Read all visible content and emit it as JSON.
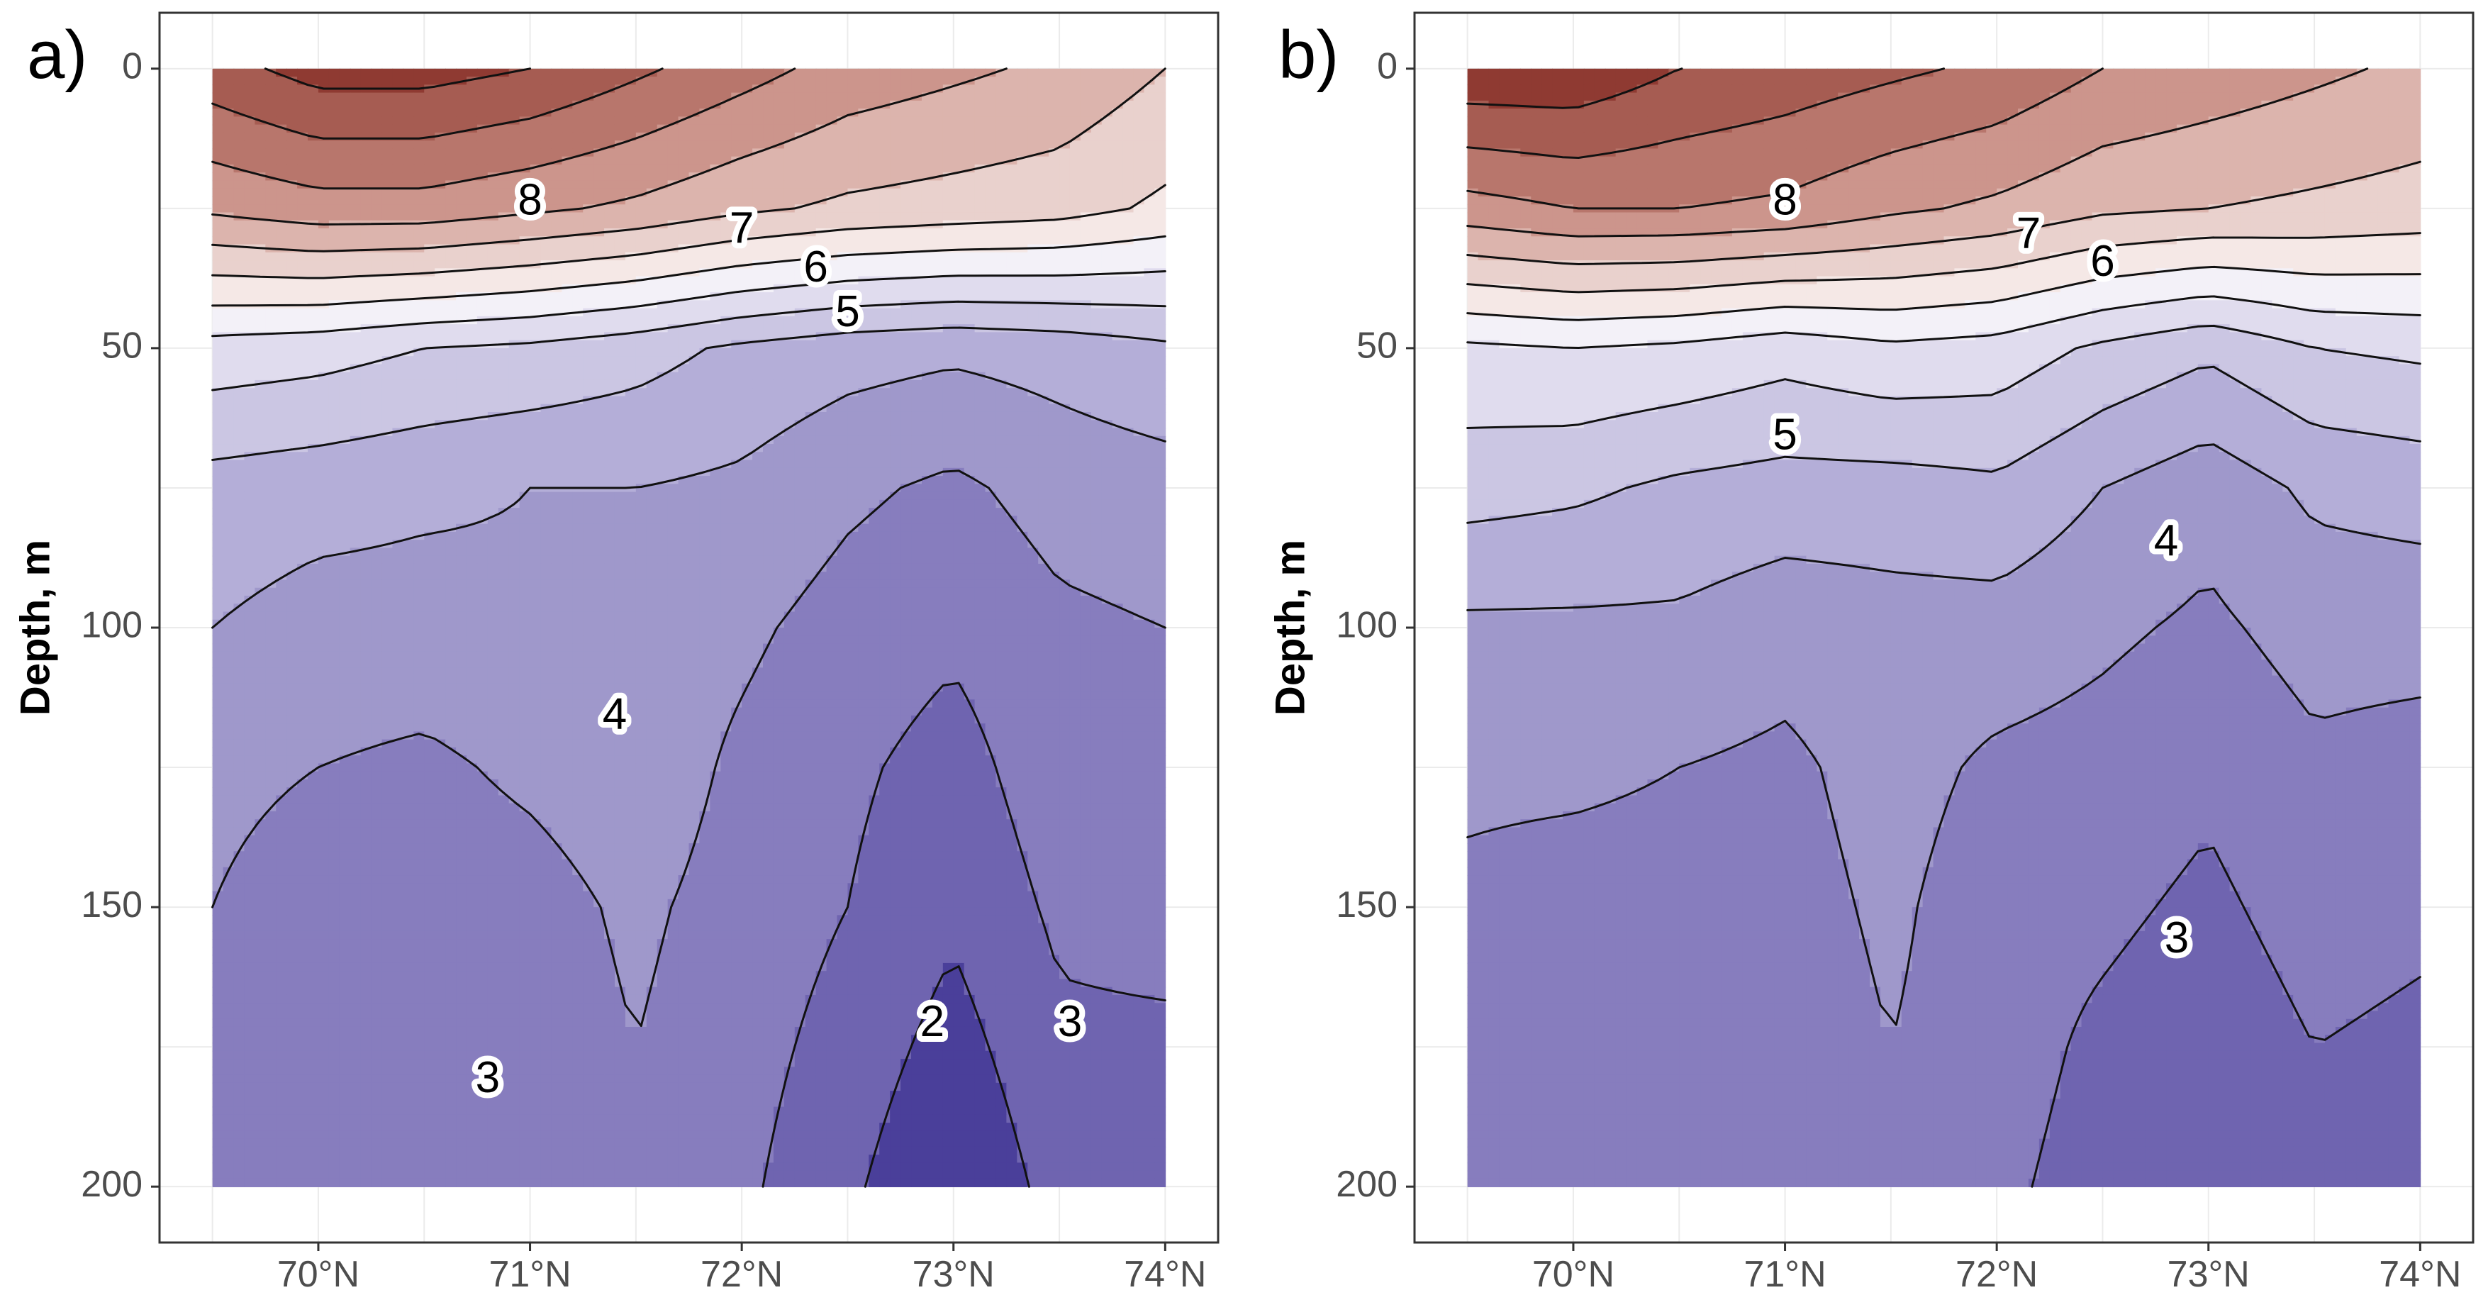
{
  "colors": {
    "scale": [
      "#4a3f9a",
      "#6f64b0",
      "#877dbe",
      "#9f98cb",
      "#b4aed8",
      "#cbc6e3",
      "#e0dcee",
      "#f3f1f8",
      "#f5e8e6",
      "#e9d1cd",
      "#dcb4ad",
      "#cc958c",
      "#b8766c",
      "#a65c52",
      "#8f3a32"
    ],
    "panel_border": "#333333",
    "grid": "#ebebeb",
    "contour_line": "#111111",
    "label_halo": "#ffffff"
  },
  "chart_data": [
    {
      "type": "heatmap",
      "panel_label": "a)",
      "ylabel": "Depth, m",
      "x_ticks": [
        70,
        71,
        72,
        73,
        74
      ],
      "x_tick_labels": [
        "70°N",
        "71°N",
        "72°N",
        "73°N",
        "74°N"
      ],
      "y_ticks": [
        0,
        50,
        100,
        150,
        200
      ],
      "y_tick_labels": [
        "0",
        "50",
        "100",
        "150",
        "200"
      ],
      "xlim": [
        69.25,
        74.25
      ],
      "ylim": [
        210,
        -10
      ],
      "grid": true,
      "contour_interval": 0.5,
      "x": [
        69.5,
        70.0,
        70.5,
        71.0,
        71.5,
        72.0,
        72.5,
        73.0,
        73.5,
        74.0
      ],
      "depths": [
        0,
        25,
        50,
        75,
        100,
        125,
        150,
        175,
        200
      ],
      "values": [
        [
          8.8,
          9.2,
          9.2,
          9.0,
          8.6,
          8.2,
          7.8,
          7.6,
          7.4,
          7.0
        ],
        [
          7.6,
          7.8,
          7.8,
          7.6,
          7.4,
          7.1,
          6.9,
          6.8,
          6.7,
          6.4
        ],
        [
          5.3,
          5.2,
          5.0,
          4.9,
          4.7,
          4.4,
          4.2,
          4.1,
          4.2,
          4.4
        ],
        [
          4.3,
          4.2,
          4.1,
          4.0,
          4.0,
          3.9,
          3.6,
          3.4,
          3.7,
          3.8
        ],
        [
          4.0,
          3.8,
          3.8,
          3.9,
          3.8,
          3.6,
          3.3,
          3.1,
          3.4,
          3.5
        ],
        [
          3.6,
          3.5,
          3.4,
          3.6,
          3.8,
          3.4,
          3.1,
          2.8,
          3.3,
          3.3
        ],
        [
          3.5,
          3.3,
          3.2,
          3.3,
          3.6,
          3.3,
          3.0,
          2.6,
          3.1,
          3.2
        ],
        [
          3.1,
          3.1,
          3.1,
          3.2,
          3.5,
          3.2,
          2.8,
          2.3,
          2.9,
          2.9
        ],
        [
          3.0,
          3.0,
          3.0,
          3.1,
          3.4,
          3.1,
          2.6,
          2.0,
          2.7,
          2.8
        ]
      ],
      "contour_labels": [
        {
          "text": "8",
          "x": 71.0,
          "y": 24
        },
        {
          "text": "7",
          "x": 72.0,
          "y": 29
        },
        {
          "text": "6",
          "x": 72.35,
          "y": 36
        },
        {
          "text": "5",
          "x": 72.5,
          "y": 44
        },
        {
          "text": "4",
          "x": 71.4,
          "y": 116
        },
        {
          "text": "3",
          "x": 70.8,
          "y": 181
        },
        {
          "text": "2",
          "x": 72.9,
          "y": 171
        },
        {
          "text": "3",
          "x": 73.55,
          "y": 171
        }
      ]
    },
    {
      "type": "heatmap",
      "panel_label": "b)",
      "ylabel": "Depth, m",
      "x_ticks": [
        70,
        71,
        72,
        73,
        74
      ],
      "x_tick_labels": [
        "70°N",
        "71°N",
        "72°N",
        "73°N",
        "74°N"
      ],
      "y_ticks": [
        0,
        50,
        100,
        150,
        200
      ],
      "y_tick_labels": [
        "0",
        "50",
        "100",
        "150",
        "200"
      ],
      "xlim": [
        69.25,
        74.25
      ],
      "ylim": [
        210,
        -10
      ],
      "grid": true,
      "contour_interval": 0.5,
      "x": [
        69.5,
        70.0,
        70.5,
        71.0,
        71.5,
        72.0,
        72.5,
        73.0,
        73.5,
        74.0
      ],
      "depths": [
        0,
        25,
        50,
        75,
        100,
        125,
        150,
        175,
        200
      ],
      "values": [
        [
          9.4,
          9.4,
          9.0,
          8.8,
          8.6,
          8.4,
          8.0,
          7.8,
          7.6,
          7.4
        ],
        [
          7.8,
          8.0,
          8.0,
          7.9,
          7.6,
          7.4,
          7.1,
          7.0,
          6.9,
          6.8
        ],
        [
          5.4,
          5.5,
          5.4,
          5.2,
          5.4,
          5.3,
          4.9,
          4.6,
          5.0,
          5.1
        ],
        [
          4.7,
          4.6,
          4.4,
          4.3,
          4.3,
          4.4,
          4.0,
          3.7,
          4.1,
          4.2
        ],
        [
          3.9,
          3.9,
          3.9,
          3.7,
          3.8,
          3.8,
          3.6,
          3.4,
          3.7,
          3.7
        ],
        [
          3.6,
          3.6,
          3.5,
          3.4,
          3.7,
          3.4,
          3.3,
          3.1,
          3.4,
          3.3
        ],
        [
          3.4,
          3.3,
          3.3,
          3.3,
          3.6,
          3.2,
          3.1,
          2.9,
          3.2,
          3.1
        ],
        [
          3.3,
          3.2,
          3.2,
          3.2,
          3.5,
          3.2,
          2.9,
          2.7,
          3.0,
          2.9
        ],
        [
          3.2,
          3.1,
          3.2,
          3.2,
          3.5,
          3.1,
          2.8,
          2.5,
          2.9,
          2.9
        ]
      ],
      "contour_labels": [
        {
          "text": "8",
          "x": 71.0,
          "y": 24
        },
        {
          "text": "7",
          "x": 72.15,
          "y": 30
        },
        {
          "text": "6",
          "x": 72.5,
          "y": 35
        },
        {
          "text": "5",
          "x": 71.0,
          "y": 66
        },
        {
          "text": "4",
          "x": 72.8,
          "y": 85
        },
        {
          "text": "3",
          "x": 72.85,
          "y": 156
        }
      ]
    }
  ]
}
